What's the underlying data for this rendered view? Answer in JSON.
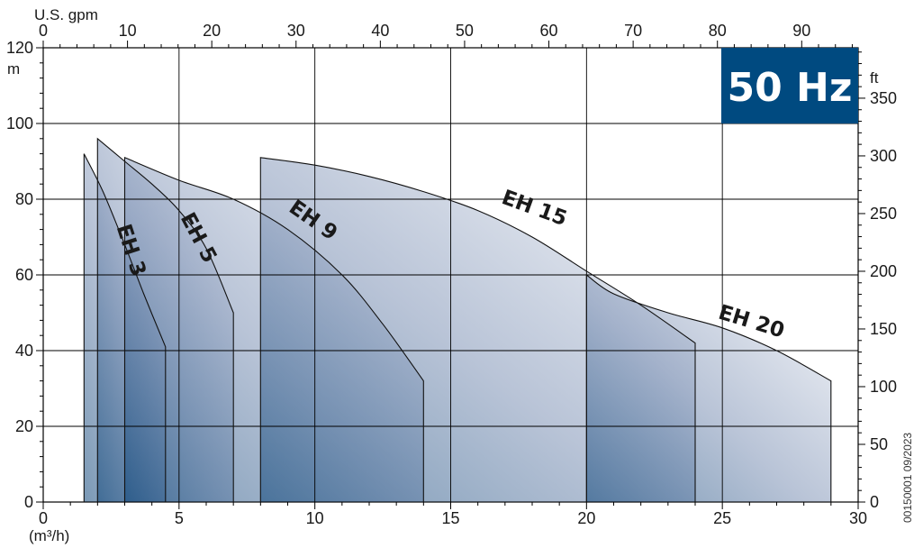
{
  "chart_data": {
    "type": "area",
    "title": "",
    "frequency_badge": "50 Hz",
    "badge_color": "#004a80",
    "code": "00150001 09/2023",
    "x_axis": {
      "label": "(m³/h)",
      "range": [
        0,
        30
      ],
      "ticks": [
        "0",
        "5",
        "10",
        "15",
        "20",
        "25",
        "30"
      ]
    },
    "y_axis": {
      "label": "m",
      "range": [
        0,
        120
      ],
      "ticks": [
        "0",
        "20",
        "40",
        "60",
        "80",
        "100",
        "120"
      ]
    },
    "x2_axis": {
      "label": "U.S. gpm",
      "range": [
        0,
        96.7
      ],
      "ticks": [
        "0",
        "10",
        "20",
        "30",
        "40",
        "50",
        "60",
        "70",
        "80",
        "90"
      ]
    },
    "y2_axis": {
      "label": "ft",
      "range": [
        0,
        393.7
      ],
      "ticks": [
        "0",
        "50",
        "100",
        "150",
        "200",
        "250",
        "300",
        "350"
      ]
    },
    "grid": true,
    "series": [
      {
        "name": "EH 3",
        "x": [
          1.5,
          4.5
        ],
        "y": [
          92,
          41
        ],
        "profile": [
          [
            1.5,
            92
          ],
          [
            2.2,
            82
          ],
          [
            3.0,
            68
          ],
          [
            3.7,
            55
          ],
          [
            4.5,
            41
          ]
        ]
      },
      {
        "name": "EH 5",
        "x": [
          2.0,
          7.0
        ],
        "y": [
          96,
          50
        ],
        "profile": [
          [
            2.0,
            96
          ],
          [
            3.0,
            90
          ],
          [
            4.0,
            84
          ],
          [
            5.0,
            77
          ],
          [
            6.0,
            67
          ],
          [
            7.0,
            50
          ]
        ]
      },
      {
        "name": "EH 9",
        "x": [
          3.0,
          14.0
        ],
        "y": [
          91,
          32
        ],
        "profile": [
          [
            3.0,
            91
          ],
          [
            5.0,
            85
          ],
          [
            7.0,
            80
          ],
          [
            9.0,
            72
          ],
          [
            11.0,
            60
          ],
          [
            12.5,
            47
          ],
          [
            14.0,
            32
          ]
        ]
      },
      {
        "name": "EH 15",
        "x": [
          8.0,
          24.0
        ],
        "y": [
          91,
          42
        ],
        "profile": [
          [
            8.0,
            91
          ],
          [
            10.0,
            89
          ],
          [
            12.0,
            86
          ],
          [
            14.0,
            82
          ],
          [
            16.0,
            77
          ],
          [
            18.0,
            70
          ],
          [
            20.0,
            61
          ],
          [
            22.0,
            52
          ],
          [
            24.0,
            42
          ]
        ]
      },
      {
        "name": "EH 20",
        "x": [
          20.0,
          29.0
        ],
        "y": [
          60,
          32
        ],
        "profile": [
          [
            20.0,
            60
          ],
          [
            21.0,
            55
          ],
          [
            23.0,
            50
          ],
          [
            25.0,
            46
          ],
          [
            27.0,
            40
          ],
          [
            29.0,
            32
          ]
        ]
      }
    ]
  }
}
